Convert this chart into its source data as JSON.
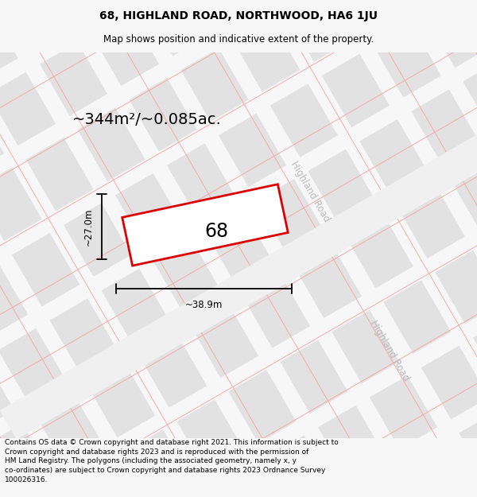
{
  "title_line1": "68, HIGHLAND ROAD, NORTHWOOD, HA6 1JU",
  "title_line2": "Map shows position and indicative extent of the property.",
  "area_text": "~344m²/~0.085ac.",
  "label_68": "68",
  "dim_height": "~27.0m",
  "dim_width": "~38.9m",
  "road_label1": "Highland Road",
  "road_label2": "Highland Road",
  "footer_text": "Contains OS data © Crown copyright and database right 2021. This information is subject to\nCrown copyright and database rights 2023 and is reproduced with the permission of\nHM Land Registry. The polygons (including the associated geometry, namely x, y\nco-ordinates) are subject to Crown copyright and database rights 2023 Ordnance Survey\n100026316.",
  "bg_color": "#f7f7f7",
  "map_bg": "#fafafa",
  "block_color": "#e2e2e2",
  "road_color": "#f0f0f0",
  "grid_line_color": "#f5aaaa",
  "property_outline_color": "#dd0000",
  "property_fill": "#ffffff",
  "annotation_color": "#000000",
  "road_label_color": "#bbbbbb",
  "title_fontsize": 10,
  "subtitle_fontsize": 8.5,
  "area_fontsize": 14,
  "label_fontsize": 17,
  "dim_fontsize": 8.5,
  "footer_fontsize": 6.5
}
